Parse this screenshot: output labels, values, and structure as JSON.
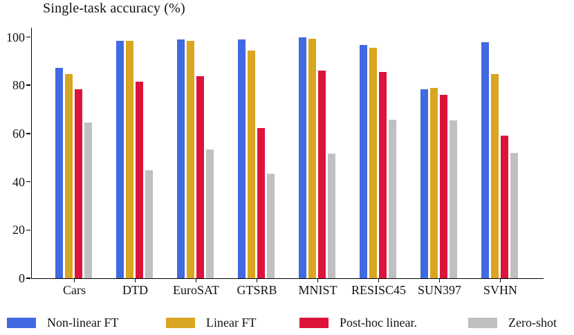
{
  "figure": {
    "title": "Single-task accuracy (%)"
  },
  "chart_data": {
    "type": "bar",
    "title": "Single-task accuracy (%)",
    "xlabel": "",
    "ylabel": "Single-task accuracy (%)",
    "categories": [
      "Cars",
      "DTD",
      "EuroSAT",
      "GTSRB",
      "MNIST",
      "RESISC45",
      "SUN397",
      "SVHN"
    ],
    "series": [
      {
        "name": "Non-linear FT",
        "color": "#4169E1",
        "values": [
          87.1,
          98.4,
          99.1,
          98.9,
          99.8,
          96.6,
          78.3,
          97.9
        ]
      },
      {
        "name": "Linear FT",
        "color": "#DAA520",
        "values": [
          84.6,
          98.5,
          98.5,
          94.5,
          99.2,
          95.5,
          78.9,
          84.7
        ]
      },
      {
        "name": "Post-hoc linear.",
        "color": "#DC143C",
        "values": [
          78.3,
          81.6,
          83.7,
          62.2,
          86.1,
          85.6,
          76.0,
          59.1
        ]
      },
      {
        "name": "Zero-shot",
        "color": "#C0C0C0",
        "values": [
          64.6,
          44.9,
          53.3,
          43.2,
          51.6,
          65.7,
          65.5,
          51.9
        ]
      }
    ],
    "ylim": [
      0,
      100
    ],
    "yticks": [
      0,
      20,
      40,
      60,
      80,
      100
    ],
    "grid": false,
    "legend_position": "bottom",
    "axis_color": "#000000",
    "text_color": "#111111"
  }
}
